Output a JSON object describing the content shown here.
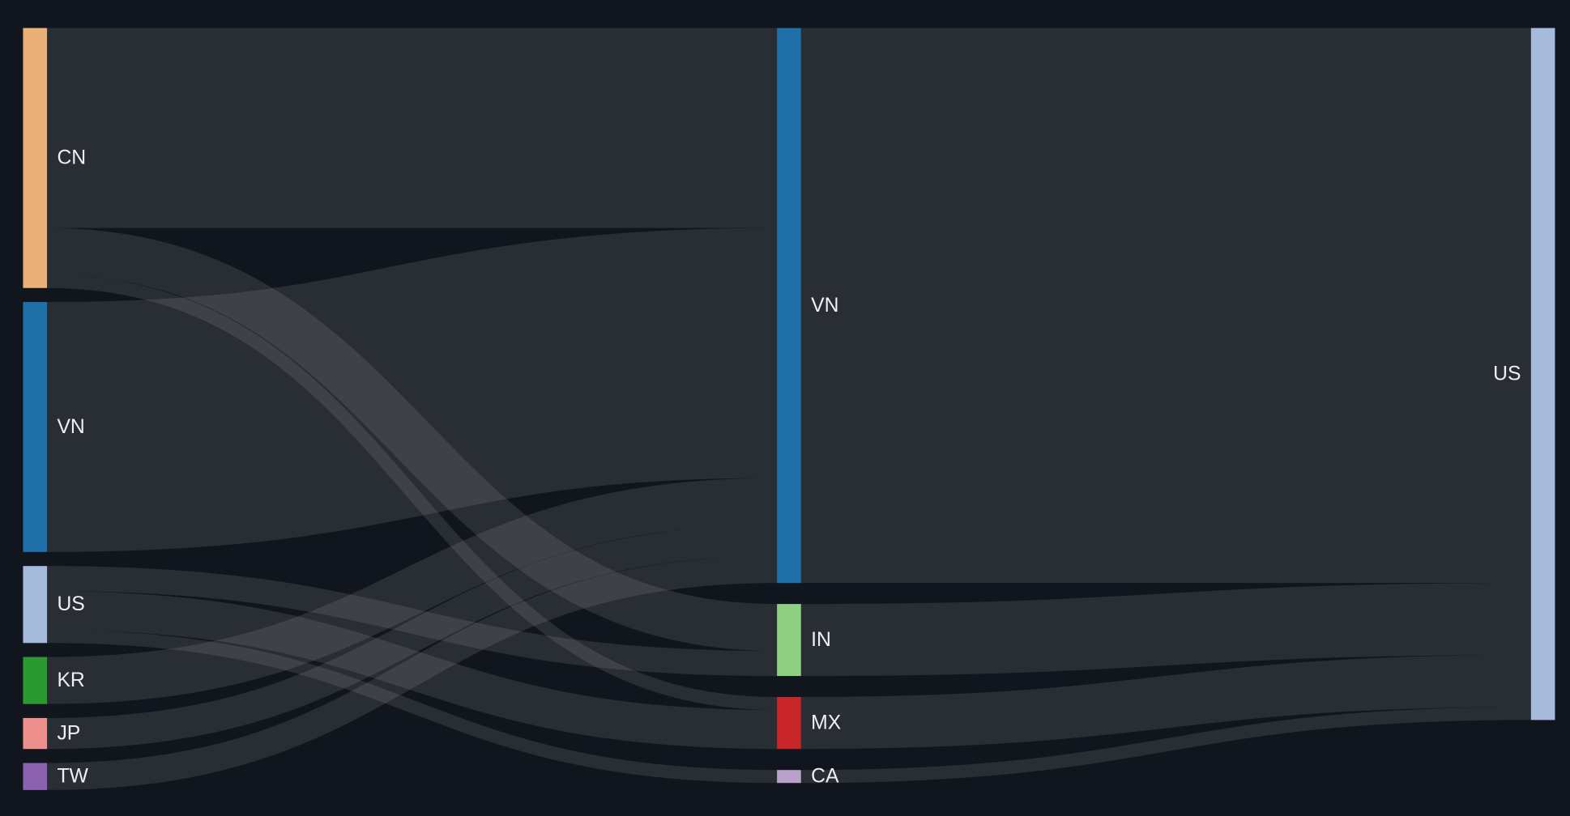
{
  "chart_data": {
    "type": "sankey",
    "background": "#11161e",
    "link_color": "#ffffff",
    "columns": [
      [
        "CN",
        "VN",
        "US",
        "KR",
        "JP",
        "TW"
      ],
      [
        "VN_mid",
        "IN",
        "MX",
        "CA"
      ],
      [
        "US_dst"
      ]
    ],
    "nodes": [
      {
        "id": "CN",
        "label": "CN",
        "color": "#ebb077"
      },
      {
        "id": "VN",
        "label": "VN",
        "color": "#1f6fa8"
      },
      {
        "id": "US",
        "label": "US",
        "color": "#a6badb"
      },
      {
        "id": "KR",
        "label": "KR",
        "color": "#2a9a30"
      },
      {
        "id": "JP",
        "label": "JP",
        "color": "#ec8f8d"
      },
      {
        "id": "TW",
        "label": "TW",
        "color": "#8c62b0"
      },
      {
        "id": "VN_mid",
        "label": "VN",
        "color": "#1f6fa8"
      },
      {
        "id": "IN",
        "label": "IN",
        "color": "#8fcf82"
      },
      {
        "id": "MX",
        "label": "MX",
        "color": "#c8262a"
      },
      {
        "id": "CA",
        "label": "CA",
        "color": "#b9a1c9"
      },
      {
        "id": "US_dst",
        "label": "US",
        "color": "#a6badb"
      }
    ],
    "links": [
      {
        "source": "CN",
        "target": "VN_mid",
        "value": 200
      },
      {
        "source": "CN",
        "target": "IN",
        "value": 47
      },
      {
        "source": "CN",
        "target": "MX",
        "value": 13
      },
      {
        "source": "VN",
        "target": "VN_mid",
        "value": 250
      },
      {
        "source": "US",
        "target": "IN",
        "value": 25
      },
      {
        "source": "US",
        "target": "MX",
        "value": 39
      },
      {
        "source": "US",
        "target": "CA",
        "value": 13
      },
      {
        "source": "KR",
        "target": "VN_mid",
        "value": 47
      },
      {
        "source": "JP",
        "target": "VN_mid",
        "value": 31
      },
      {
        "source": "TW",
        "target": "VN_mid",
        "value": 27
      },
      {
        "source": "VN_mid",
        "target": "US_dst",
        "value": 555
      },
      {
        "source": "IN",
        "target": "US_dst",
        "value": 72
      },
      {
        "source": "MX",
        "target": "US_dst",
        "value": 52
      },
      {
        "source": "CA",
        "target": "US_dst",
        "value": 13
      }
    ]
  }
}
